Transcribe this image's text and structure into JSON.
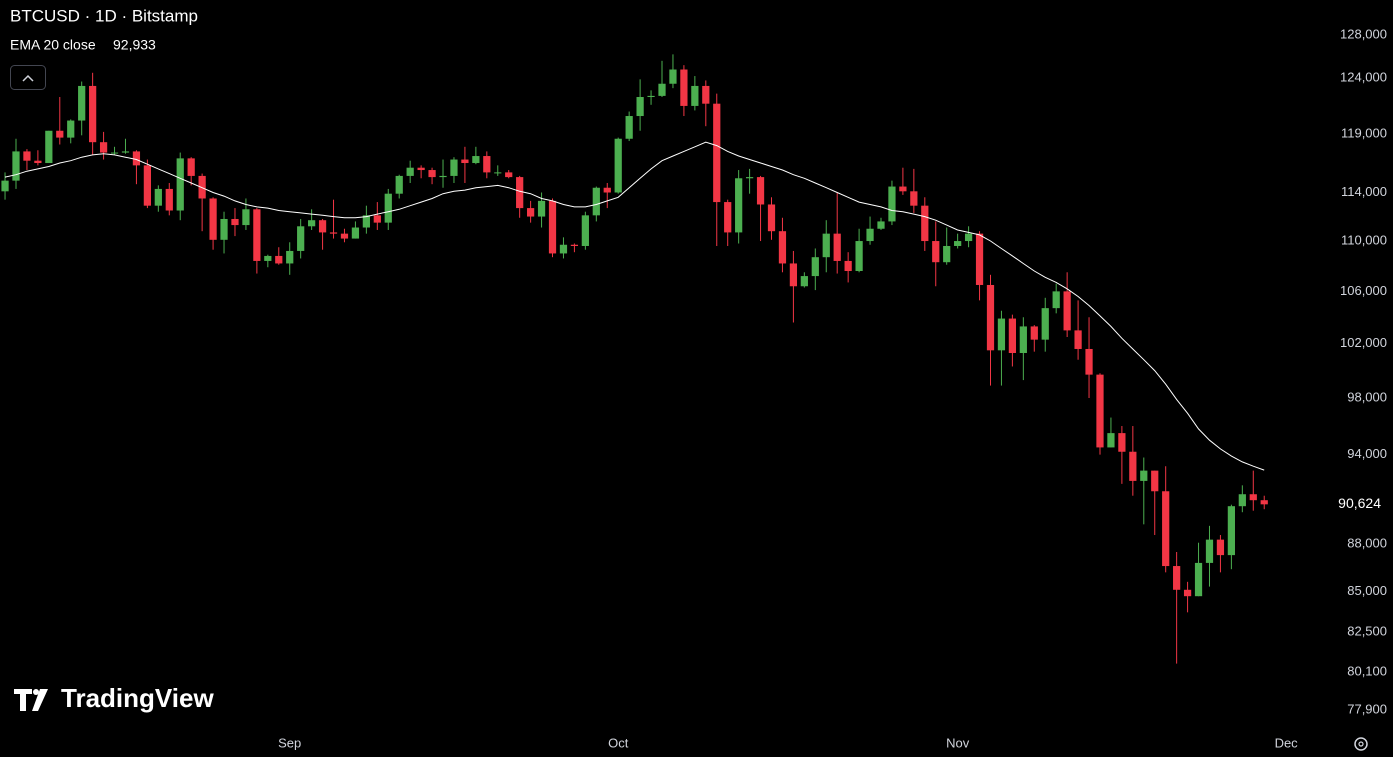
{
  "chart_data": {
    "type": "candlestick",
    "title": "BTCUSD · 1D · Bitstamp",
    "watermark": "TradingView",
    "up_color": "#4caf50",
    "down_color": "#f23645",
    "log": true,
    "ylim": [
      76870,
      131350
    ],
    "yticks": [
      {
        "value": 128000,
        "label": "128,000"
      },
      {
        "value": 124000,
        "label": "124,000"
      },
      {
        "value": 119000,
        "label": "119,000"
      },
      {
        "value": 114000,
        "label": "114,000"
      },
      {
        "value": 110000,
        "label": "110,000"
      },
      {
        "value": 106000,
        "label": "106,000"
      },
      {
        "value": 102000,
        "label": "102,000"
      },
      {
        "value": 98000,
        "label": "98,000"
      },
      {
        "value": 94000,
        "label": "94,000"
      },
      {
        "value": 88000,
        "label": "88,000"
      },
      {
        "value": 85000,
        "label": "85,000"
      },
      {
        "value": 82500,
        "label": "82,500"
      },
      {
        "value": 80100,
        "label": "80,100"
      },
      {
        "value": 77900,
        "label": "77,900"
      }
    ],
    "xlim": [
      -0.46,
      119.18
    ],
    "xticks": [
      {
        "value": 26,
        "label": "Sep"
      },
      {
        "value": 56,
        "label": "Oct"
      },
      {
        "value": 87,
        "label": "Nov"
      },
      {
        "value": 117,
        "label": "Dec"
      }
    ],
    "last_price": {
      "value": 90624,
      "label": "90,624"
    },
    "open": [
      114100,
      115000,
      117500,
      116700,
      116500,
      119300,
      118700,
      120200,
      123300,
      118300,
      117400,
      117400,
      117500,
      116300,
      112900,
      114300,
      112500,
      116900,
      115400,
      113500,
      110100,
      111800,
      111300,
      112600,
      108400,
      108800,
      108200,
      109200,
      111200,
      111700,
      110700,
      110600,
      110200,
      111100,
      112100,
      111500,
      113900,
      115400,
      116100,
      115900,
      115300,
      115400,
      116800,
      116500,
      117100,
      115700,
      115700,
      115300,
      112700,
      112000,
      113300,
      109000,
      109700,
      109600,
      112100,
      114400,
      114000,
      118600,
      120600,
      122300,
      122400,
      123500,
      124800,
      121500,
      123300,
      121700,
      113200,
      110700,
      115200,
      115300,
      113000,
      110800,
      108200,
      106400,
      107200,
      108700,
      110600,
      108400,
      107600,
      110000,
      111000,
      111600,
      114500,
      114100,
      112900,
      110000,
      108300,
      109600,
      110000,
      110600,
      106500,
      101500,
      103900,
      101300,
      103300,
      102300,
      104700,
      106000,
      103000,
      101600,
      99700,
      94500,
      95500,
      94200,
      92200,
      92900,
      91500,
      86600,
      85100,
      84700,
      86800,
      88300,
      87300,
      90500,
      91300,
      90900
    ],
    "high": [
      115700,
      118600,
      117700,
      117600,
      119300,
      122300,
      120300,
      123700,
      124500,
      119200,
      117900,
      118600,
      117600,
      116800,
      114600,
      114800,
      117400,
      117000,
      115600,
      113600,
      112400,
      112700,
      113500,
      112700,
      108900,
      109500,
      109900,
      111800,
      112600,
      111800,
      113400,
      111000,
      111600,
      112900,
      113200,
      114300,
      115500,
      116700,
      116300,
      116100,
      116800,
      117000,
      117900,
      117900,
      117500,
      116300,
      115900,
      115400,
      113300,
      114000,
      113500,
      110300,
      109800,
      112400,
      114500,
      114800,
      118700,
      121000,
      123900,
      122900,
      125600,
      126200,
      125200,
      124200,
      123800,
      122600,
      113400,
      115900,
      116000,
      115400,
      113600,
      111900,
      109200,
      107500,
      109400,
      111700,
      114000,
      109100,
      111000,
      112000,
      111900,
      115000,
      116100,
      116000,
      113600,
      111600,
      111100,
      110600,
      111200,
      110800,
      107300,
      104500,
      104200,
      104000,
      103400,
      105500,
      106600,
      107500,
      105300,
      104000,
      99800,
      96600,
      96000,
      96000,
      93800,
      92900,
      93200,
      87500,
      85600,
      88100,
      89200,
      88600,
      90600,
      91900,
      92900,
      91200
    ],
    "low": [
      113400,
      114300,
      115900,
      116300,
      116500,
      118100,
      118200,
      118900,
      117200,
      116800,
      117200,
      117300,
      114700,
      112700,
      112400,
      112100,
      111700,
      114600,
      110800,
      109300,
      109000,
      110400,
      110900,
      107400,
      107900,
      108100,
      107300,
      108600,
      110900,
      109300,
      110200,
      109900,
      110200,
      110600,
      110900,
      110900,
      113500,
      114800,
      115200,
      114700,
      114400,
      114800,
      114800,
      116400,
      115200,
      115400,
      115200,
      111900,
      111500,
      111100,
      108700,
      108600,
      109100,
      109300,
      111600,
      112700,
      113900,
      118400,
      119300,
      121600,
      122300,
      123100,
      120600,
      121100,
      119700,
      109600,
      109600,
      109800,
      113900,
      110000,
      110100,
      107500,
      103600,
      106300,
      106100,
      107500,
      107400,
      106700,
      107500,
      109700,
      110900,
      111300,
      113800,
      112300,
      109200,
      106400,
      108100,
      109400,
      109500,
      105300,
      98900,
      98900,
      100300,
      99300,
      101400,
      101400,
      104300,
      102500,
      100800,
      98000,
      94000,
      94500,
      92000,
      91200,
      89300,
      88600,
      86200,
      80600,
      83700,
      84700,
      85300,
      86200,
      86400,
      90100,
      90200,
      90300
    ],
    "close": [
      115000,
      117500,
      116700,
      116500,
      119300,
      118700,
      120200,
      123300,
      118300,
      117400,
      117400,
      117500,
      116300,
      112900,
      114300,
      112500,
      116900,
      115400,
      113500,
      110100,
      111800,
      111300,
      112600,
      108400,
      108800,
      108200,
      109200,
      111200,
      111700,
      110700,
      110600,
      110200,
      111100,
      112100,
      111500,
      113900,
      115400,
      116100,
      115900,
      115300,
      115400,
      116800,
      116500,
      117100,
      115700,
      115700,
      115300,
      112700,
      112000,
      113300,
      109000,
      109700,
      109600,
      112100,
      114400,
      114000,
      118600,
      120600,
      122300,
      122400,
      123500,
      124800,
      121500,
      123300,
      121700,
      113200,
      110700,
      115200,
      115300,
      113000,
      110800,
      108200,
      106400,
      107200,
      108700,
      110600,
      108400,
      107600,
      110000,
      111000,
      111600,
      114500,
      114100,
      112900,
      110000,
      108300,
      109600,
      110000,
      110600,
      106500,
      101500,
      103900,
      101300,
      103300,
      102300,
      104700,
      106000,
      103000,
      101600,
      99700,
      94500,
      95500,
      94200,
      92200,
      92900,
      91500,
      86600,
      85100,
      84700,
      86800,
      88300,
      87300,
      90500,
      91300,
      90900,
      90624
    ],
    "ema": {
      "name": "EMA 20 close",
      "color": "#ffffff",
      "last_label": "92,933",
      "values": [
        115300,
        115500,
        115800,
        116000,
        116200,
        116500,
        116700,
        117000,
        117200,
        117300,
        117200,
        117000,
        116800,
        116400,
        116000,
        115600,
        115200,
        114800,
        114400,
        114000,
        113700,
        113300,
        113000,
        112800,
        112700,
        112500,
        112400,
        112300,
        112200,
        112100,
        112000,
        111900,
        111900,
        112000,
        112200,
        112400,
        112600,
        112900,
        113200,
        113500,
        113900,
        114100,
        114200,
        114400,
        114500,
        114600,
        114400,
        114100,
        113900,
        113500,
        113300,
        113000,
        112800,
        112800,
        113000,
        113300,
        113600,
        114400,
        115200,
        116000,
        116700,
        117100,
        117500,
        117900,
        118300,
        118000,
        117500,
        117100,
        116800,
        116500,
        116200,
        115900,
        115500,
        115200,
        114800,
        114400,
        114000,
        113600,
        113200,
        113000,
        112800,
        112500,
        112400,
        112200,
        112000,
        111700,
        111300,
        110900,
        110700,
        110500,
        110000,
        109400,
        108800,
        108200,
        107600,
        107100,
        106700,
        106200,
        105600,
        104900,
        104100,
        103300,
        102400,
        101600,
        100800,
        100000,
        99000,
        97900,
        96900,
        95800,
        95000,
        94400,
        93900,
        93500,
        93200,
        92933
      ]
    }
  }
}
